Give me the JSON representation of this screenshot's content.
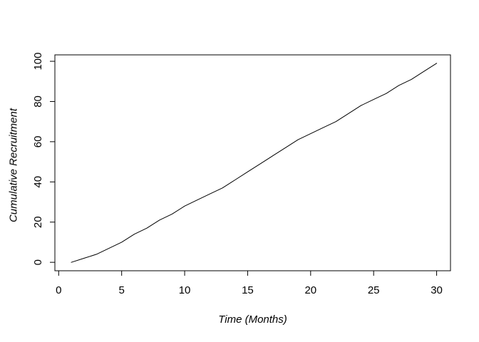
{
  "figure": {
    "background": "#ffffff",
    "axis_color": "#000000",
    "line_color": "#000000"
  },
  "chart_data": {
    "type": "line",
    "title": "",
    "xlabel": "Time (Months)",
    "ylabel": "Cumulative Recruitment",
    "x": [
      1,
      2,
      3,
      4,
      5,
      6,
      7,
      8,
      9,
      10,
      11,
      12,
      13,
      14,
      15,
      16,
      17,
      18,
      19,
      20,
      21,
      22,
      23,
      24,
      25,
      26,
      27,
      28,
      29,
      30
    ],
    "y": [
      0,
      2,
      4,
      7,
      10,
      14,
      17,
      21,
      24,
      28,
      31,
      34,
      37,
      41,
      45,
      49,
      53,
      57,
      61,
      64,
      67,
      70,
      74,
      78,
      81,
      84,
      88,
      91,
      95,
      99
    ],
    "x_ticks": [
      0,
      5,
      10,
      15,
      20,
      25,
      30
    ],
    "y_ticks": [
      0,
      20,
      40,
      60,
      80,
      100
    ],
    "x_range": [
      -0.3,
      31.1
    ],
    "y_range": [
      -4.2,
      103.2
    ],
    "grid": false,
    "legend": null
  }
}
